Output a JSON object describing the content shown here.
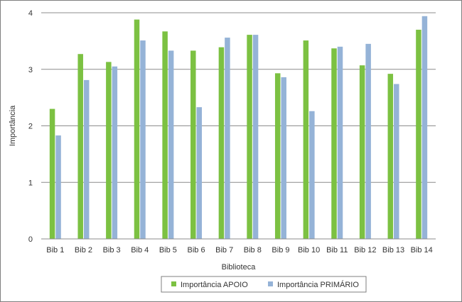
{
  "chart_data": {
    "type": "bar",
    "title": "",
    "xlabel": "Biblioteca",
    "ylabel": "Importância",
    "ylim": [
      0,
      4
    ],
    "yticks": [
      0,
      1,
      2,
      3,
      4
    ],
    "grid": true,
    "legend_position": "bottom",
    "categories": [
      "Bib 1",
      "Bib 2",
      "Bib 3",
      "Bib 4",
      "Bib 5",
      "Bib 6",
      "Bib 7",
      "Bib 8",
      "Bib 9",
      "Bib 10",
      "Bib 11",
      "Bib 12",
      "Bib 13",
      "Bib 14"
    ],
    "series": [
      {
        "name": "Importância APOIO",
        "color": "#7cc142",
        "values": [
          2.3,
          3.27,
          3.13,
          3.88,
          3.67,
          3.33,
          3.39,
          3.61,
          2.93,
          3.51,
          3.37,
          3.07,
          2.92,
          3.7
        ]
      },
      {
        "name": "Importância PRIMÁRIO",
        "color": "#95b3d7",
        "values": [
          1.83,
          2.81,
          3.05,
          3.51,
          3.33,
          2.33,
          3.56,
          3.61,
          2.86,
          2.26,
          3.4,
          3.45,
          2.74,
          3.94
        ]
      }
    ]
  }
}
